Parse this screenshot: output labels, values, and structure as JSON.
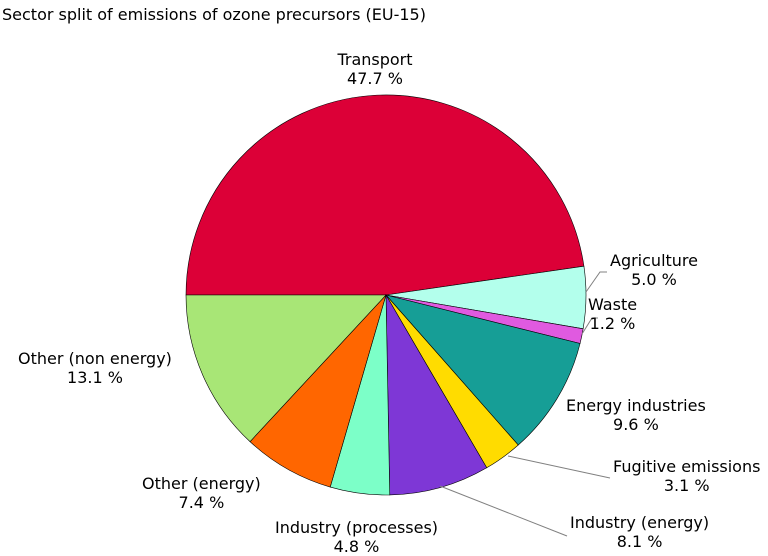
{
  "chart_data": {
    "type": "pie",
    "title": "Sector split of emissions of ozone precursors (EU-15)",
    "slices": [
      {
        "name": "Transport",
        "value": 47.7,
        "label": "47.7 %",
        "color": "#DC0037"
      },
      {
        "name": "Agriculture",
        "value": 5.0,
        "label": "5.0 %",
        "color": "#B3FFEC"
      },
      {
        "name": "Waste",
        "value": 1.2,
        "label": "1.2 %",
        "color": "#E05AE0"
      },
      {
        "name": "Energy industries",
        "value": 9.6,
        "label": "9.6 %",
        "color": "#169E96"
      },
      {
        "name": "Fugitive emissions",
        "value": 3.1,
        "label": "3.1 %",
        "color": "#FFDC00"
      },
      {
        "name": "Industry (energy)",
        "value": 8.1,
        "label": "8.1 %",
        "color": "#7E37D6"
      },
      {
        "name": "Industry (processes)",
        "value": 4.8,
        "label": "4.8 %",
        "color": "#7CFFC8"
      },
      {
        "name": "Other (energy)",
        "value": 7.4,
        "label": "7.4 %",
        "color": "#FF6600"
      },
      {
        "name": "Other (non energy)",
        "value": 13.1,
        "label": "13.1 %",
        "color": "#A8E676"
      }
    ]
  }
}
